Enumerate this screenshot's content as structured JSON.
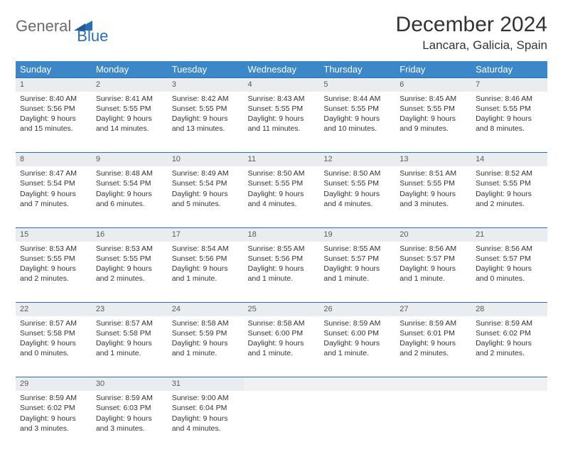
{
  "logo": {
    "part1": "General",
    "part2": "Blue"
  },
  "title": "December 2024",
  "location": "Lancara, Galicia, Spain",
  "colors": {
    "header_bg": "#3b87c8",
    "header_fg": "#ffffff",
    "daynum_bg": "#e9edf0",
    "border": "#2a6fb5",
    "logo_gray": "#6b6b6b",
    "logo_blue": "#2a6fb5"
  },
  "day_headers": [
    "Sunday",
    "Monday",
    "Tuesday",
    "Wednesday",
    "Thursday",
    "Friday",
    "Saturday"
  ],
  "weeks": [
    [
      {
        "n": "1",
        "sr": "Sunrise: 8:40 AM",
        "ss": "Sunset: 5:56 PM",
        "d1": "Daylight: 9 hours",
        "d2": "and 15 minutes."
      },
      {
        "n": "2",
        "sr": "Sunrise: 8:41 AM",
        "ss": "Sunset: 5:55 PM",
        "d1": "Daylight: 9 hours",
        "d2": "and 14 minutes."
      },
      {
        "n": "3",
        "sr": "Sunrise: 8:42 AM",
        "ss": "Sunset: 5:55 PM",
        "d1": "Daylight: 9 hours",
        "d2": "and 13 minutes."
      },
      {
        "n": "4",
        "sr": "Sunrise: 8:43 AM",
        "ss": "Sunset: 5:55 PM",
        "d1": "Daylight: 9 hours",
        "d2": "and 11 minutes."
      },
      {
        "n": "5",
        "sr": "Sunrise: 8:44 AM",
        "ss": "Sunset: 5:55 PM",
        "d1": "Daylight: 9 hours",
        "d2": "and 10 minutes."
      },
      {
        "n": "6",
        "sr": "Sunrise: 8:45 AM",
        "ss": "Sunset: 5:55 PM",
        "d1": "Daylight: 9 hours",
        "d2": "and 9 minutes."
      },
      {
        "n": "7",
        "sr": "Sunrise: 8:46 AM",
        "ss": "Sunset: 5:55 PM",
        "d1": "Daylight: 9 hours",
        "d2": "and 8 minutes."
      }
    ],
    [
      {
        "n": "8",
        "sr": "Sunrise: 8:47 AM",
        "ss": "Sunset: 5:54 PM",
        "d1": "Daylight: 9 hours",
        "d2": "and 7 minutes."
      },
      {
        "n": "9",
        "sr": "Sunrise: 8:48 AM",
        "ss": "Sunset: 5:54 PM",
        "d1": "Daylight: 9 hours",
        "d2": "and 6 minutes."
      },
      {
        "n": "10",
        "sr": "Sunrise: 8:49 AM",
        "ss": "Sunset: 5:54 PM",
        "d1": "Daylight: 9 hours",
        "d2": "and 5 minutes."
      },
      {
        "n": "11",
        "sr": "Sunrise: 8:50 AM",
        "ss": "Sunset: 5:55 PM",
        "d1": "Daylight: 9 hours",
        "d2": "and 4 minutes."
      },
      {
        "n": "12",
        "sr": "Sunrise: 8:50 AM",
        "ss": "Sunset: 5:55 PM",
        "d1": "Daylight: 9 hours",
        "d2": "and 4 minutes."
      },
      {
        "n": "13",
        "sr": "Sunrise: 8:51 AM",
        "ss": "Sunset: 5:55 PM",
        "d1": "Daylight: 9 hours",
        "d2": "and 3 minutes."
      },
      {
        "n": "14",
        "sr": "Sunrise: 8:52 AM",
        "ss": "Sunset: 5:55 PM",
        "d1": "Daylight: 9 hours",
        "d2": "and 2 minutes."
      }
    ],
    [
      {
        "n": "15",
        "sr": "Sunrise: 8:53 AM",
        "ss": "Sunset: 5:55 PM",
        "d1": "Daylight: 9 hours",
        "d2": "and 2 minutes."
      },
      {
        "n": "16",
        "sr": "Sunrise: 8:53 AM",
        "ss": "Sunset: 5:55 PM",
        "d1": "Daylight: 9 hours",
        "d2": "and 2 minutes."
      },
      {
        "n": "17",
        "sr": "Sunrise: 8:54 AM",
        "ss": "Sunset: 5:56 PM",
        "d1": "Daylight: 9 hours",
        "d2": "and 1 minute."
      },
      {
        "n": "18",
        "sr": "Sunrise: 8:55 AM",
        "ss": "Sunset: 5:56 PM",
        "d1": "Daylight: 9 hours",
        "d2": "and 1 minute."
      },
      {
        "n": "19",
        "sr": "Sunrise: 8:55 AM",
        "ss": "Sunset: 5:57 PM",
        "d1": "Daylight: 9 hours",
        "d2": "and 1 minute."
      },
      {
        "n": "20",
        "sr": "Sunrise: 8:56 AM",
        "ss": "Sunset: 5:57 PM",
        "d1": "Daylight: 9 hours",
        "d2": "and 1 minute."
      },
      {
        "n": "21",
        "sr": "Sunrise: 8:56 AM",
        "ss": "Sunset: 5:57 PM",
        "d1": "Daylight: 9 hours",
        "d2": "and 0 minutes."
      }
    ],
    [
      {
        "n": "22",
        "sr": "Sunrise: 8:57 AM",
        "ss": "Sunset: 5:58 PM",
        "d1": "Daylight: 9 hours",
        "d2": "and 0 minutes."
      },
      {
        "n": "23",
        "sr": "Sunrise: 8:57 AM",
        "ss": "Sunset: 5:58 PM",
        "d1": "Daylight: 9 hours",
        "d2": "and 1 minute."
      },
      {
        "n": "24",
        "sr": "Sunrise: 8:58 AM",
        "ss": "Sunset: 5:59 PM",
        "d1": "Daylight: 9 hours",
        "d2": "and 1 minute."
      },
      {
        "n": "25",
        "sr": "Sunrise: 8:58 AM",
        "ss": "Sunset: 6:00 PM",
        "d1": "Daylight: 9 hours",
        "d2": "and 1 minute."
      },
      {
        "n": "26",
        "sr": "Sunrise: 8:59 AM",
        "ss": "Sunset: 6:00 PM",
        "d1": "Daylight: 9 hours",
        "d2": "and 1 minute."
      },
      {
        "n": "27",
        "sr": "Sunrise: 8:59 AM",
        "ss": "Sunset: 6:01 PM",
        "d1": "Daylight: 9 hours",
        "d2": "and 2 minutes."
      },
      {
        "n": "28",
        "sr": "Sunrise: 8:59 AM",
        "ss": "Sunset: 6:02 PM",
        "d1": "Daylight: 9 hours",
        "d2": "and 2 minutes."
      }
    ],
    [
      {
        "n": "29",
        "sr": "Sunrise: 8:59 AM",
        "ss": "Sunset: 6:02 PM",
        "d1": "Daylight: 9 hours",
        "d2": "and 3 minutes."
      },
      {
        "n": "30",
        "sr": "Sunrise: 8:59 AM",
        "ss": "Sunset: 6:03 PM",
        "d1": "Daylight: 9 hours",
        "d2": "and 3 minutes."
      },
      {
        "n": "31",
        "sr": "Sunrise: 9:00 AM",
        "ss": "Sunset: 6:04 PM",
        "d1": "Daylight: 9 hours",
        "d2": "and 4 minutes."
      },
      null,
      null,
      null,
      null
    ]
  ]
}
